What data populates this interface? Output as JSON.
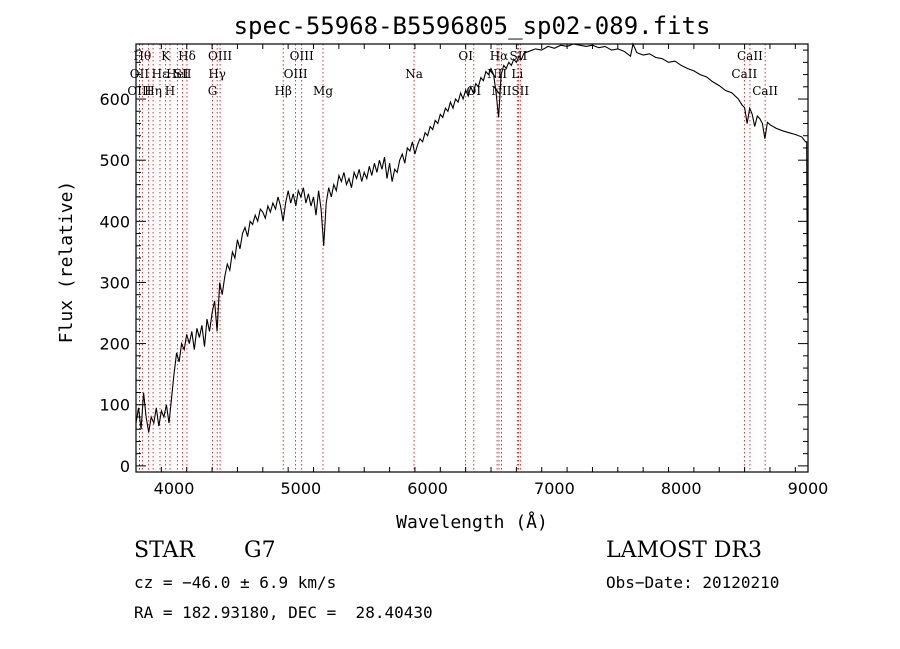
{
  "chart_data": {
    "type": "line",
    "title": "spec-55968-B5596805_sp02-089.fits",
    "xlabel": "Wavelength (Å)",
    "ylabel": "Flux (relative)",
    "xlim": [
      3700,
      9000
    ],
    "ylim": [
      -10,
      690
    ],
    "x_ticks": [
      4000,
      5000,
      6000,
      7000,
      8000,
      9000
    ],
    "y_ticks": [
      0,
      100,
      200,
      300,
      400,
      500,
      600
    ],
    "grid": false,
    "series": [
      {
        "name": "flux",
        "color": "#000000",
        "points": [
          [
            3700,
            70
          ],
          [
            3720,
            95
          ],
          [
            3740,
            60
          ],
          [
            3760,
            120
          ],
          [
            3780,
            80
          ],
          [
            3800,
            55
          ],
          [
            3820,
            80
          ],
          [
            3840,
            70
          ],
          [
            3860,
            95
          ],
          [
            3880,
            65
          ],
          [
            3900,
            90
          ],
          [
            3920,
            80
          ],
          [
            3940,
            100
          ],
          [
            3960,
            70
          ],
          [
            3980,
            110
          ],
          [
            4000,
            150
          ],
          [
            4020,
            185
          ],
          [
            4040,
            170
          ],
          [
            4060,
            200
          ],
          [
            4080,
            190
          ],
          [
            4100,
            215
          ],
          [
            4120,
            200
          ],
          [
            4140,
            220
          ],
          [
            4160,
            190
          ],
          [
            4180,
            225
          ],
          [
            4200,
            210
          ],
          [
            4220,
            230
          ],
          [
            4240,
            195
          ],
          [
            4260,
            240
          ],
          [
            4280,
            220
          ],
          [
            4300,
            250
          ],
          [
            4320,
            270
          ],
          [
            4340,
            220
          ],
          [
            4360,
            300
          ],
          [
            4380,
            280
          ],
          [
            4400,
            310
          ],
          [
            4420,
            330
          ],
          [
            4440,
            320
          ],
          [
            4460,
            350
          ],
          [
            4480,
            340
          ],
          [
            4500,
            370
          ],
          [
            4520,
            355
          ],
          [
            4540,
            380
          ],
          [
            4560,
            390
          ],
          [
            4580,
            375
          ],
          [
            4600,
            400
          ],
          [
            4620,
            395
          ],
          [
            4640,
            410
          ],
          [
            4660,
            400
          ],
          [
            4680,
            420
          ],
          [
            4700,
            415
          ],
          [
            4720,
            405
          ],
          [
            4740,
            425
          ],
          [
            4760,
            415
          ],
          [
            4780,
            430
          ],
          [
            4800,
            420
          ],
          [
            4820,
            440
          ],
          [
            4840,
            425
          ],
          [
            4860,
            400
          ],
          [
            4880,
            430
          ],
          [
            4900,
            450
          ],
          [
            4920,
            430
          ],
          [
            4940,
            445
          ],
          [
            4960,
            425
          ],
          [
            4980,
            450
          ],
          [
            5000,
            440
          ],
          [
            5020,
            455
          ],
          [
            5040,
            430
          ],
          [
            5060,
            445
          ],
          [
            5080,
            425
          ],
          [
            5100,
            440
          ],
          [
            5120,
            410
          ],
          [
            5140,
            450
          ],
          [
            5160,
            420
          ],
          [
            5180,
            360
          ],
          [
            5200,
            430
          ],
          [
            5220,
            455
          ],
          [
            5240,
            440
          ],
          [
            5260,
            460
          ],
          [
            5280,
            450
          ],
          [
            5300,
            475
          ],
          [
            5320,
            465
          ],
          [
            5340,
            480
          ],
          [
            5360,
            460
          ],
          [
            5380,
            470
          ],
          [
            5400,
            455
          ],
          [
            5420,
            480
          ],
          [
            5440,
            470
          ],
          [
            5460,
            485
          ],
          [
            5480,
            465
          ],
          [
            5500,
            480
          ],
          [
            5520,
            470
          ],
          [
            5540,
            490
          ],
          [
            5560,
            475
          ],
          [
            5580,
            495
          ],
          [
            5600,
            480
          ],
          [
            5620,
            500
          ],
          [
            5640,
            485
          ],
          [
            5660,
            505
          ],
          [
            5680,
            470
          ],
          [
            5700,
            495
          ],
          [
            5720,
            465
          ],
          [
            5740,
            485
          ],
          [
            5760,
            480
          ],
          [
            5780,
            500
          ],
          [
            5800,
            510
          ],
          [
            5820,
            495
          ],
          [
            5840,
            520
          ],
          [
            5860,
            515
          ],
          [
            5880,
            530
          ],
          [
            5900,
            510
          ],
          [
            5920,
            525
          ],
          [
            5940,
            535
          ],
          [
            5960,
            530
          ],
          [
            5980,
            545
          ],
          [
            6000,
            540
          ],
          [
            6020,
            555
          ],
          [
            6040,
            550
          ],
          [
            6060,
            565
          ],
          [
            6080,
            560
          ],
          [
            6100,
            575
          ],
          [
            6120,
            570
          ],
          [
            6140,
            585
          ],
          [
            6160,
            580
          ],
          [
            6180,
            595
          ],
          [
            6200,
            585
          ],
          [
            6220,
            600
          ],
          [
            6240,
            595
          ],
          [
            6260,
            610
          ],
          [
            6280,
            600
          ],
          [
            6300,
            615
          ],
          [
            6320,
            605
          ],
          [
            6340,
            620
          ],
          [
            6360,
            610
          ],
          [
            6380,
            625
          ],
          [
            6400,
            620
          ],
          [
            6420,
            635
          ],
          [
            6440,
            630
          ],
          [
            6460,
            645
          ],
          [
            6480,
            640
          ],
          [
            6500,
            650
          ],
          [
            6520,
            640
          ],
          [
            6540,
            610
          ],
          [
            6560,
            570
          ],
          [
            6580,
            640
          ],
          [
            6600,
            655
          ],
          [
            6620,
            650
          ],
          [
            6640,
            660
          ],
          [
            6660,
            655
          ],
          [
            6680,
            665
          ],
          [
            6700,
            660
          ],
          [
            6720,
            670
          ],
          [
            6740,
            665
          ],
          [
            6760,
            675
          ],
          [
            6800,
            678
          ],
          [
            6850,
            682
          ],
          [
            6900,
            680
          ],
          [
            6950,
            686
          ],
          [
            7000,
            683
          ],
          [
            7050,
            688
          ],
          [
            7100,
            686
          ],
          [
            7150,
            690
          ],
          [
            7200,
            688
          ],
          [
            7250,
            686
          ],
          [
            7300,
            688
          ],
          [
            7350,
            684
          ],
          [
            7400,
            686
          ],
          [
            7450,
            680
          ],
          [
            7500,
            682
          ],
          [
            7550,
            678
          ],
          [
            7600,
            670
          ],
          [
            7620,
            690
          ],
          [
            7650,
            676
          ],
          [
            7700,
            672
          ],
          [
            7750,
            674
          ],
          [
            7800,
            668
          ],
          [
            7850,
            666
          ],
          [
            7900,
            660
          ],
          [
            7950,
            662
          ],
          [
            8000,
            655
          ],
          [
            8050,
            650
          ],
          [
            8100,
            646
          ],
          [
            8150,
            640
          ],
          [
            8200,
            636
          ],
          [
            8250,
            628
          ],
          [
            8300,
            622
          ],
          [
            8350,
            614
          ],
          [
            8400,
            610
          ],
          [
            8450,
            600
          ],
          [
            8480,
            590
          ],
          [
            8500,
            586
          ],
          [
            8520,
            560
          ],
          [
            8540,
            585
          ],
          [
            8560,
            575
          ],
          [
            8580,
            555
          ],
          [
            8600,
            572
          ],
          [
            8620,
            568
          ],
          [
            8640,
            560
          ],
          [
            8660,
            535
          ],
          [
            8680,
            562
          ],
          [
            8700,
            558
          ],
          [
            8750,
            552
          ],
          [
            8800,
            548
          ],
          [
            8850,
            545
          ],
          [
            8900,
            542
          ],
          [
            8950,
            538
          ],
          [
            8980,
            530
          ],
          [
            8990,
            530
          ],
          [
            8995,
            250
          ],
          [
            9000,
            300
          ]
        ]
      }
    ],
    "line_markers": [
      {
        "wavelength": 3750,
        "label": "Hθ",
        "tier": 1
      },
      {
        "wavelength": 3727,
        "label": "OII",
        "tier": 2
      },
      {
        "wavelength": 3727,
        "label": "OIII",
        "tier": 3
      },
      {
        "wavelength": 3800,
        "label": "",
        "tier": 0
      },
      {
        "wavelength": 3835,
        "label": "Hη",
        "tier": 3
      },
      {
        "wavelength": 3889,
        "label": "Hε",
        "tier": 2
      },
      {
        "wavelength": 3934,
        "label": "K",
        "tier": 1
      },
      {
        "wavelength": 3968,
        "label": "H",
        "tier": 3
      },
      {
        "wavelength": 4026,
        "label": "HeI",
        "tier": 2
      },
      {
        "wavelength": 4068,
        "label": "SII",
        "tier": 2
      },
      {
        "wavelength": 4102,
        "label": "Hδ",
        "tier": 1
      },
      {
        "wavelength": 4304,
        "label": "G",
        "tier": 3
      },
      {
        "wavelength": 4340,
        "label": "Hγ",
        "tier": 2
      },
      {
        "wavelength": 4363,
        "label": "OIII",
        "tier": 1
      },
      {
        "wavelength": 4861,
        "label": "Hβ",
        "tier": 3
      },
      {
        "wavelength": 4959,
        "label": "OIII",
        "tier": 2
      },
      {
        "wavelength": 5007,
        "label": "OIII",
        "tier": 1
      },
      {
        "wavelength": 5175,
        "label": "Mg",
        "tier": 3
      },
      {
        "wavelength": 5893,
        "label": "Na",
        "tier": 2
      },
      {
        "wavelength": 6300,
        "label": "OI",
        "tier": 1
      },
      {
        "wavelength": 6364,
        "label": "OI",
        "tier": 3
      },
      {
        "wavelength": 6548,
        "label": "NII",
        "tier": 2
      },
      {
        "wavelength": 6563,
        "label": "Hα",
        "tier": 1
      },
      {
        "wavelength": 6583,
        "label": "NII",
        "tier": 3
      },
      {
        "wavelength": 6707,
        "label": "Li",
        "tier": 2
      },
      {
        "wavelength": 6716,
        "label": "SII",
        "tier": 1
      },
      {
        "wavelength": 6731,
        "label": "SII",
        "tier": 3
      },
      {
        "wavelength": 8498,
        "label": "CaII",
        "tier": 2
      },
      {
        "wavelength": 8542,
        "label": "CaII",
        "tier": 1
      },
      {
        "wavelength": 8662,
        "label": "CaII",
        "tier": 3
      }
    ]
  },
  "info": {
    "object_class": "STAR",
    "subclass": "G7",
    "survey": "LAMOST DR3",
    "redshift": "cz = −46.0 ± 6.9 km/s",
    "obs_date": "Obs−Date: 20120210",
    "coords": "RA = 182.93180, DEC =  28.40430"
  },
  "colors": {
    "spectrum": "#000000",
    "marker": "#cc0000",
    "axes": "#000000"
  }
}
